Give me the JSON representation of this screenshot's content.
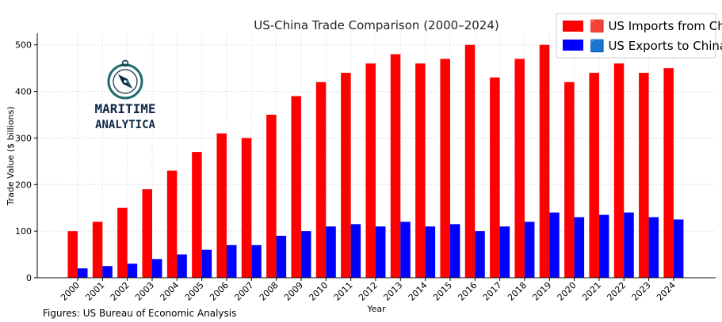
{
  "chart_data": {
    "type": "bar",
    "title": "US-China Trade Comparison (2000–2024)",
    "xlabel": "Year",
    "ylabel": "Trade Value ($ billions)",
    "ylim": [
      0,
      525
    ],
    "yticks": [
      0,
      100,
      200,
      300,
      400,
      500
    ],
    "grid": true,
    "legend_position": "top-right",
    "categories": [
      "2000",
      "2001",
      "2002",
      "2003",
      "2004",
      "2005",
      "2006",
      "2007",
      "2008",
      "2009",
      "2010",
      "2011",
      "2012",
      "2013",
      "2014",
      "2015",
      "2016",
      "2017",
      "2018",
      "2019",
      "2020",
      "2021",
      "2022",
      "2023",
      "2024"
    ],
    "series": [
      {
        "name": "🟥 US Imports from China",
        "color": "#ff0000",
        "values": [
          100,
          120,
          150,
          190,
          230,
          270,
          310,
          300,
          350,
          390,
          420,
          440,
          460,
          480,
          460,
          470,
          500,
          430,
          470,
          500,
          420,
          440,
          460,
          440,
          450
        ]
      },
      {
        "name": "🟦 US Exports to China",
        "color": "#0000ff",
        "values": [
          20,
          25,
          30,
          40,
          50,
          60,
          70,
          70,
          90,
          100,
          110,
          115,
          110,
          120,
          110,
          115,
          100,
          110,
          120,
          140,
          130,
          135,
          140,
          130,
          125
        ]
      }
    ]
  },
  "logo": {
    "line1": "MARITIME",
    "line2": "ANALYTICA",
    "icon": "compass-icon",
    "color": "#0e2a47",
    "accent": "#1f6b6b"
  },
  "caption": "Figures: US Bureau of Economic Analysis"
}
